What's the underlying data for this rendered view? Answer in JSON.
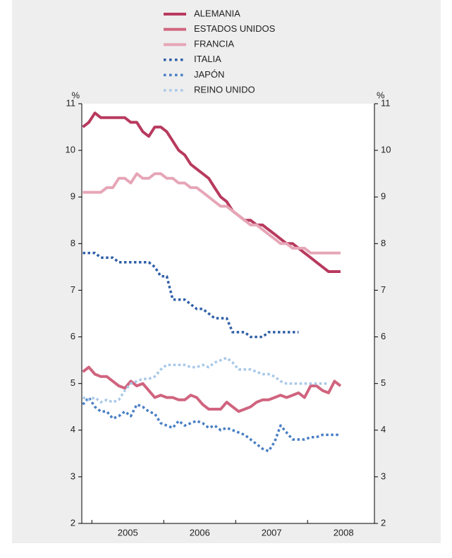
{
  "chart_data": {
    "type": "line",
    "ylabel": "%",
    "legend": "top",
    "x": [
      2004.875,
      2004.958,
      2005.042,
      2005.125,
      2005.208,
      2005.292,
      2005.375,
      2005.458,
      2005.542,
      2005.625,
      2005.708,
      2005.792,
      2005.875,
      2005.958,
      2006.042,
      2006.125,
      2006.208,
      2006.292,
      2006.375,
      2006.458,
      2006.542,
      2006.625,
      2006.708,
      2006.792,
      2006.875,
      2006.958,
      2007.042,
      2007.125,
      2007.208,
      2007.292,
      2007.375,
      2007.458,
      2007.542,
      2007.625,
      2007.708,
      2007.792,
      2007.875,
      2007.958,
      2008.042,
      2008.125,
      2008.208,
      2008.292,
      2008.375,
      2008.458
    ],
    "xlim": [
      2004.86,
      2008.93
    ],
    "xticks": [
      {
        "value": 2005.5,
        "label": "2005"
      },
      {
        "value": 2006.5,
        "label": "2006"
      },
      {
        "value": 2007.5,
        "label": "2007"
      },
      {
        "value": 2008.5,
        "label": "2008"
      }
    ],
    "xminor": [
      2005,
      2006,
      2007,
      2008
    ],
    "ylim": [
      2,
      11
    ],
    "yticks": [
      2,
      3,
      4,
      5,
      6,
      7,
      8,
      9,
      10,
      11
    ],
    "series": [
      {
        "name": "ALEMANIA",
        "color": "#b83a5e",
        "style": "solid",
        "values": [
          10.5,
          10.6,
          10.8,
          10.7,
          10.7,
          10.7,
          10.7,
          10.7,
          10.6,
          10.6,
          10.4,
          10.3,
          10.5,
          10.5,
          10.4,
          10.2,
          10.0,
          9.9,
          9.7,
          9.6,
          9.5,
          9.4,
          9.2,
          9.0,
          8.9,
          8.7,
          8.6,
          8.5,
          8.5,
          8.4,
          8.4,
          8.3,
          8.2,
          8.1,
          8.0,
          8.0,
          7.9,
          7.8,
          7.7,
          7.6,
          7.5,
          7.4,
          7.4,
          7.4
        ]
      },
      {
        "name": "ESTADOS UNIDOS",
        "color": "#d0647f",
        "style": "solid",
        "values": [
          5.25,
          5.35,
          5.2,
          5.15,
          5.15,
          5.05,
          4.95,
          4.9,
          5.05,
          4.95,
          5.0,
          4.85,
          4.7,
          4.75,
          4.7,
          4.7,
          4.65,
          4.65,
          4.75,
          4.7,
          4.55,
          4.45,
          4.45,
          4.45,
          4.6,
          4.5,
          4.4,
          4.45,
          4.5,
          4.6,
          4.65,
          4.65,
          4.7,
          4.75,
          4.7,
          4.75,
          4.8,
          4.7,
          4.95,
          4.95,
          4.85,
          4.8,
          5.05,
          4.95
        ]
      },
      {
        "name": "FRANCIA",
        "color": "#e6a6b7",
        "style": "solid",
        "values": [
          9.1,
          9.1,
          9.1,
          9.1,
          9.2,
          9.2,
          9.4,
          9.4,
          9.3,
          9.5,
          9.4,
          9.4,
          9.5,
          9.5,
          9.4,
          9.4,
          9.3,
          9.3,
          9.2,
          9.2,
          9.1,
          9.0,
          8.9,
          8.8,
          8.8,
          8.7,
          8.6,
          8.5,
          8.4,
          8.4,
          8.3,
          8.2,
          8.1,
          8.0,
          8.0,
          7.9,
          7.9,
          7.9,
          7.8,
          7.8,
          7.8,
          7.8,
          7.8,
          7.8
        ]
      },
      {
        "name": "ITALIA",
        "color": "#2f5fa6",
        "style": "dotted",
        "values": [
          7.8,
          7.8,
          7.8,
          7.7,
          7.7,
          7.7,
          7.6,
          7.6,
          7.6,
          7.6,
          7.6,
          7.6,
          7.5,
          7.3,
          7.3,
          6.8,
          6.8,
          6.8,
          6.7,
          6.6,
          6.6,
          6.5,
          6.4,
          6.4,
          6.4,
          6.1,
          6.1,
          6.1,
          6.0,
          6.0,
          6.0,
          6.1,
          6.1,
          6.1,
          6.1,
          6.1,
          6.1,
          null,
          null,
          null,
          null,
          null,
          null,
          null
        ]
      },
      {
        "name": "JAPÓN",
        "color": "#4a7fc4",
        "style": "dotted",
        "values": [
          4.55,
          4.7,
          4.5,
          4.4,
          4.4,
          4.25,
          4.3,
          4.4,
          4.3,
          4.55,
          4.5,
          4.4,
          4.35,
          4.15,
          4.1,
          4.05,
          4.2,
          4.1,
          4.15,
          4.2,
          4.15,
          4.05,
          4.1,
          4.0,
          4.05,
          4.0,
          3.95,
          3.9,
          3.8,
          3.7,
          3.6,
          3.55,
          3.75,
          4.1,
          3.95,
          3.8,
          3.8,
          3.8,
          3.85,
          3.85,
          3.9,
          3.9,
          3.9,
          3.9
        ]
      },
      {
        "name": "REINO UNIDO",
        "color": "#a8c8e8",
        "style": "dotted",
        "values": [
          4.7,
          4.65,
          4.7,
          4.6,
          4.65,
          4.6,
          4.65,
          4.85,
          5.0,
          5.05,
          5.1,
          5.1,
          5.15,
          5.3,
          5.4,
          5.4,
          5.4,
          5.4,
          5.35,
          5.35,
          5.4,
          5.35,
          5.45,
          5.5,
          5.55,
          5.45,
          5.3,
          5.3,
          5.3,
          5.25,
          5.2,
          5.2,
          5.15,
          5.05,
          5.0,
          5.0,
          5.0,
          5.0,
          5.0,
          5.0,
          5.0,
          5.0,
          null,
          null
        ]
      }
    ]
  }
}
